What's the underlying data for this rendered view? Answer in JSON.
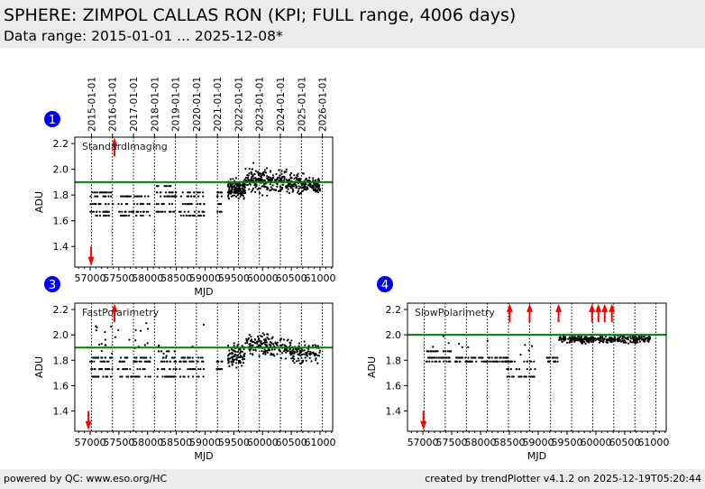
{
  "header": {
    "title": "SPHERE: ZIMPOL CALLAS RON (KPI; FULL range, 4006 days)",
    "subtitle": "Data range: 2015-01-01 ... 2025-12-08*"
  },
  "footer": {
    "left": "powered by QC: www.eso.org/HC",
    "right": "created by trendPlotter v4.1.2 on 2025-12-19T05:20:44"
  },
  "colors": {
    "points": "#000000",
    "threshold": "#008000",
    "outlier": "#ff0000",
    "badge": "#0000ff"
  },
  "chart_data": {
    "type": "scatter",
    "xlabel": "MJD",
    "ylabel": "ADU",
    "xlim": [
      56733,
      61220
    ],
    "ylim": [
      1.24,
      2.25
    ],
    "xticks": [
      "57000",
      "57500",
      "58000",
      "58500",
      "59000",
      "59500",
      "60000",
      "60500",
      "61000"
    ],
    "yticks": [
      "1.4",
      "1.6",
      "1.8",
      "2.0",
      "2.2"
    ],
    "date_ticks": [
      {
        "label": "2015-01-01",
        "mjd": 57023
      },
      {
        "label": "2016-01-01",
        "mjd": 57388
      },
      {
        "label": "2017-01-01",
        "mjd": 57754
      },
      {
        "label": "2018-01-01",
        "mjd": 58119
      },
      {
        "label": "2019-01-01",
        "mjd": 58484
      },
      {
        "label": "2020-01-01",
        "mjd": 58849
      },
      {
        "label": "2021-01-01",
        "mjd": 59215
      },
      {
        "label": "2022-01-01",
        "mjd": 59580
      },
      {
        "label": "2023-01-01",
        "mjd": 59945
      },
      {
        "label": "2024-01-01",
        "mjd": 60310
      },
      {
        "label": "2025-01-01",
        "mjd": 60676
      },
      {
        "label": "2026-01-01",
        "mjd": 61041
      }
    ],
    "panels": [
      {
        "id": "1",
        "name": "StandardImaging",
        "threshold": 1.9,
        "discrete": [
          {
            "mjd": [
              57000,
              57400
            ],
            "levels": [
              1.64,
              1.67,
              1.73,
              1.79,
              1.82
            ],
            "n": 70
          },
          {
            "mjd": [
              57480,
              58050
            ],
            "levels": [
              1.64,
              1.67,
              1.73,
              1.79
            ],
            "n": 70
          },
          {
            "mjd": [
              58150,
              58500
            ],
            "levels": [
              1.67,
              1.73,
              1.79,
              1.82,
              1.87
            ],
            "n": 60
          },
          {
            "mjd": [
              58550,
              59000
            ],
            "levels": [
              1.64,
              1.67,
              1.73,
              1.79,
              1.82
            ],
            "n": 60
          },
          {
            "mjd": [
              59200,
              59300
            ],
            "levels": [
              1.67,
              1.73,
              1.79,
              1.82
            ],
            "n": 20
          }
        ],
        "scatter": [
          {
            "mjd": [
              59400,
              59700
            ],
            "mean": 1.85,
            "sd": 0.05,
            "n": 150
          },
          {
            "mjd": [
              59700,
              60100
            ],
            "mean": 1.92,
            "sd": 0.07,
            "n": 130
          },
          {
            "mjd": [
              60100,
              60500
            ],
            "mean": 1.9,
            "sd": 0.06,
            "n": 110
          },
          {
            "mjd": [
              60500,
              61000
            ],
            "mean": 1.88,
            "sd": 0.05,
            "n": 150
          }
        ],
        "up_arrows": [
          57424
        ],
        "down_arrows": [
          57016
        ]
      },
      {
        "id": "3",
        "name": "FastPolarimetry",
        "threshold": 1.9,
        "discrete": [
          {
            "mjd": [
              57000,
              57400
            ],
            "levels": [
              1.67,
              1.73,
              1.79,
              1.82
            ],
            "n": 60
          },
          {
            "mjd": [
              57480,
              58050
            ],
            "levels": [
              1.67,
              1.73,
              1.79,
              1.82
            ],
            "n": 70
          },
          {
            "mjd": [
              58150,
              58500
            ],
            "levels": [
              1.67,
              1.73,
              1.79,
              1.82,
              1.87
            ],
            "n": 50
          },
          {
            "mjd": [
              58550,
              59000
            ],
            "levels": [
              1.67,
              1.73,
              1.79,
              1.82
            ],
            "n": 50
          },
          {
            "mjd": [
              59200,
              59300
            ],
            "levels": [
              1.73,
              1.79
            ],
            "n": 15
          }
        ],
        "scatter": [
          {
            "mjd": [
              57000,
              59000
            ],
            "mean": 1.97,
            "sd": 0.1,
            "n": 30
          },
          {
            "mjd": [
              59400,
              59700
            ],
            "mean": 1.84,
            "sd": 0.06,
            "n": 90
          },
          {
            "mjd": [
              59700,
              60100
            ],
            "mean": 1.93,
            "sd": 0.07,
            "n": 90
          },
          {
            "mjd": [
              60100,
              60500
            ],
            "mean": 1.9,
            "sd": 0.06,
            "n": 80
          },
          {
            "mjd": [
              60500,
              61000
            ],
            "mean": 1.86,
            "sd": 0.06,
            "n": 100
          }
        ],
        "up_arrows": [
          57424
        ],
        "down_arrows": [
          56970
        ]
      },
      {
        "id": "4",
        "name": "SlowPolarimetry",
        "threshold": 2.0,
        "discrete": [
          {
            "mjd": [
              57020,
              57500
            ],
            "levels": [
              1.79,
              1.82,
              1.87
            ],
            "n": 60
          },
          {
            "mjd": [
              57550,
              58500
            ],
            "levels": [
              1.79,
              1.82
            ],
            "n": 80
          },
          {
            "mjd": [
              58450,
              58950
            ],
            "levels": [
              1.67,
              1.73,
              1.79
            ],
            "n": 40
          },
          {
            "mjd": [
              59150,
              59350
            ],
            "levels": [
              1.79,
              1.82
            ],
            "n": 20
          }
        ],
        "scatter": [
          {
            "mjd": [
              57050,
              58900
            ],
            "mean": 1.9,
            "sd": 0.05,
            "n": 12
          },
          {
            "mjd": [
              59350,
              60950
            ],
            "mean": 1.965,
            "sd": 0.02,
            "n": 320
          }
        ],
        "up_arrows": [
          58506,
          58851,
          59353,
          59933,
          60043,
          60153,
          60278
        ],
        "down_arrows": [
          57010
        ]
      }
    ]
  }
}
